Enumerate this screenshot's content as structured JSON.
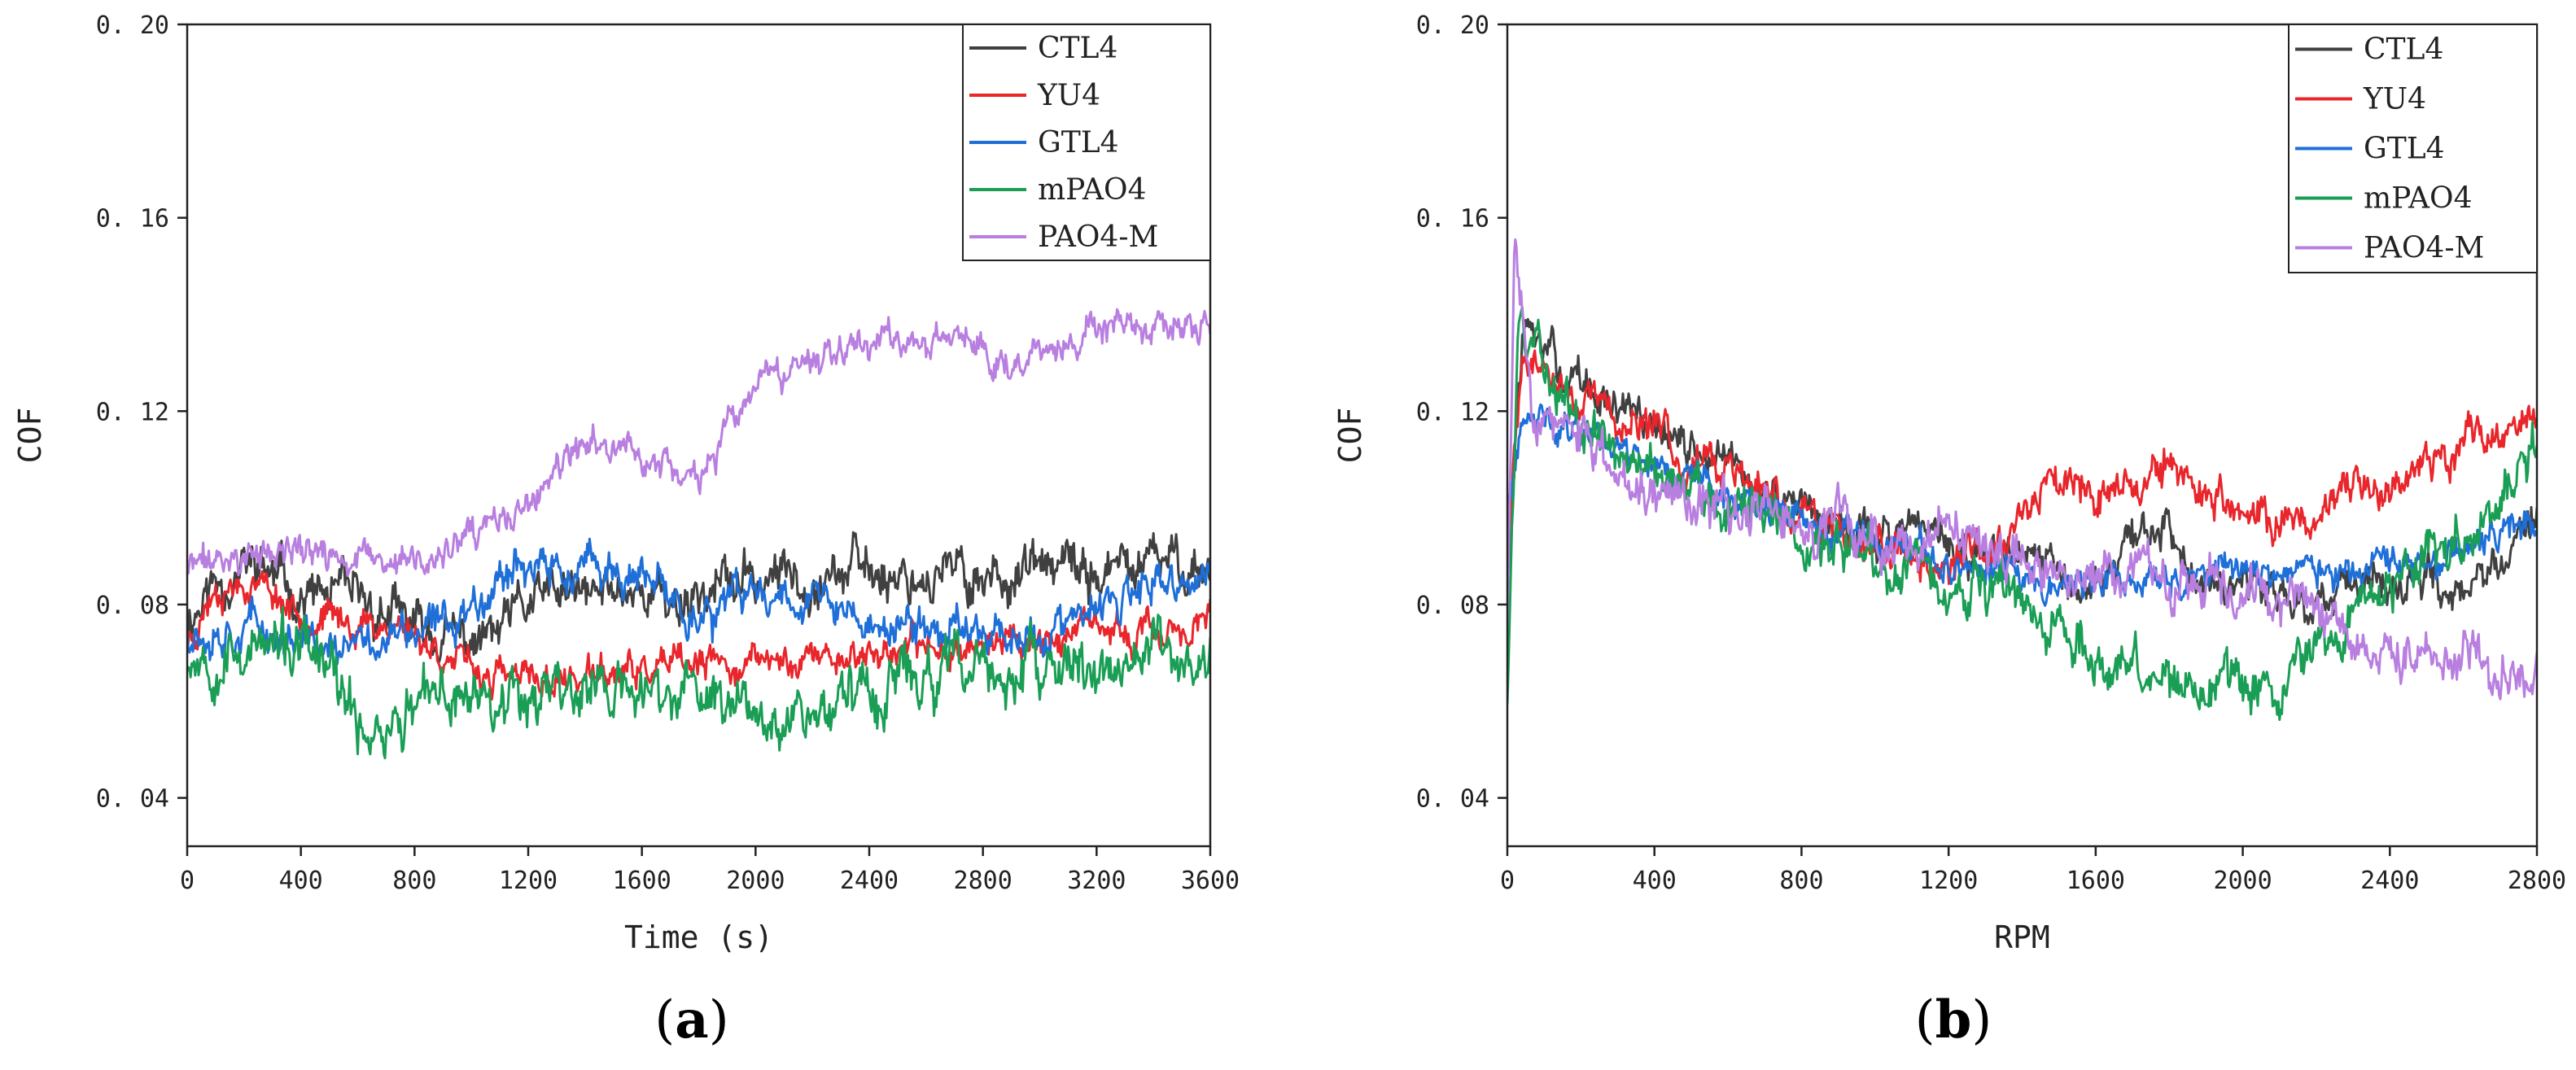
{
  "chart_data": [
    {
      "id": "a",
      "panel_label": "a",
      "type": "line",
      "xlabel": "Time (s)",
      "ylabel": "COF",
      "xlim": [
        0,
        3600
      ],
      "ylim": [
        0.03,
        0.2
      ],
      "xticks": [
        0,
        400,
        800,
        1200,
        1600,
        2000,
        2400,
        2800,
        3200,
        3600
      ],
      "yticks": [
        0.04,
        0.08,
        0.12,
        0.16,
        0.2
      ],
      "legend_position": "top-right",
      "series": [
        {
          "name": "CTL4",
          "color": "#404040",
          "noise": 0.006,
          "seed": 11,
          "points": [
            [
              0,
              0.077
            ],
            [
              100,
              0.085
            ],
            [
              250,
              0.088
            ],
            [
              400,
              0.082
            ],
            [
              550,
              0.081
            ],
            [
              700,
              0.078
            ],
            [
              800,
              0.075
            ],
            [
              900,
              0.073
            ],
            [
              1000,
              0.072
            ],
            [
              1100,
              0.074
            ],
            [
              1200,
              0.08
            ],
            [
              1300,
              0.082
            ],
            [
              1400,
              0.081
            ],
            [
              1500,
              0.083
            ],
            [
              1600,
              0.084
            ],
            [
              1700,
              0.08
            ],
            [
              1800,
              0.083
            ],
            [
              2000,
              0.085
            ],
            [
              2200,
              0.087
            ],
            [
              2400,
              0.087
            ],
            [
              2600,
              0.086
            ],
            [
              2800,
              0.086
            ],
            [
              3000,
              0.087
            ],
            [
              3200,
              0.086
            ],
            [
              3400,
              0.088
            ],
            [
              3500,
              0.089
            ],
            [
              3600,
              0.087
            ]
          ]
        },
        {
          "name": "YU4",
          "color": "#e8262b",
          "noise": 0.004,
          "seed": 23,
          "points": [
            [
              0,
              0.072
            ],
            [
              100,
              0.084
            ],
            [
              250,
              0.085
            ],
            [
              400,
              0.078
            ],
            [
              600,
              0.076
            ],
            [
              750,
              0.076
            ],
            [
              850,
              0.072
            ],
            [
              1000,
              0.066
            ],
            [
              1200,
              0.064
            ],
            [
              1400,
              0.065
            ],
            [
              1600,
              0.066
            ],
            [
              1800,
              0.067
            ],
            [
              2000,
              0.068
            ],
            [
              2200,
              0.069
            ],
            [
              2400,
              0.07
            ],
            [
              2600,
              0.071
            ],
            [
              2800,
              0.072
            ],
            [
              3000,
              0.073
            ],
            [
              3200,
              0.074
            ],
            [
              3400,
              0.074
            ],
            [
              3500,
              0.075
            ],
            [
              3600,
              0.076
            ]
          ]
        },
        {
          "name": "GTL4",
          "color": "#1f6fd8",
          "noise": 0.005,
          "seed": 37,
          "points": [
            [
              0,
              0.075
            ],
            [
              200,
              0.076
            ],
            [
              400,
              0.072
            ],
            [
              550,
              0.07
            ],
            [
              700,
              0.073
            ],
            [
              850,
              0.074
            ],
            [
              1000,
              0.08
            ],
            [
              1150,
              0.09
            ],
            [
              1300,
              0.086
            ],
            [
              1500,
              0.087
            ],
            [
              1700,
              0.081
            ],
            [
              1850,
              0.077
            ],
            [
              2000,
              0.083
            ],
            [
              2200,
              0.082
            ],
            [
              2400,
              0.075
            ],
            [
              2600,
              0.075
            ],
            [
              2800,
              0.076
            ],
            [
              3000,
              0.073
            ],
            [
              3200,
              0.078
            ],
            [
              3400,
              0.083
            ],
            [
              3600,
              0.085
            ]
          ]
        },
        {
          "name": "mPAO4",
          "color": "#1a9e55",
          "noise": 0.007,
          "seed": 53,
          "points": [
            [
              0,
              0.07
            ],
            [
              200,
              0.071
            ],
            [
              400,
              0.07
            ],
            [
              500,
              0.066
            ],
            [
              580,
              0.055
            ],
            [
              700,
              0.055
            ],
            [
              800,
              0.058
            ],
            [
              1000,
              0.062
            ],
            [
              1200,
              0.063
            ],
            [
              1400,
              0.063
            ],
            [
              1600,
              0.061
            ],
            [
              1800,
              0.061
            ],
            [
              2000,
              0.06
            ],
            [
              2200,
              0.058
            ],
            [
              2400,
              0.063
            ],
            [
              2600,
              0.065
            ],
            [
              2800,
              0.066
            ],
            [
              3000,
              0.065
            ],
            [
              3200,
              0.067
            ],
            [
              3400,
              0.069
            ],
            [
              3600,
              0.068
            ]
          ]
        },
        {
          "name": "PAO4-M",
          "color": "#b87fe0",
          "noise": 0.004,
          "seed": 71,
          "points": [
            [
              0,
              0.088
            ],
            [
              200,
              0.09
            ],
            [
              400,
              0.091
            ],
            [
              600,
              0.089
            ],
            [
              800,
              0.088
            ],
            [
              1000,
              0.093
            ],
            [
              1200,
              0.1
            ],
            [
              1350,
              0.11
            ],
            [
              1500,
              0.114
            ],
            [
              1650,
              0.109
            ],
            [
              1800,
              0.106
            ],
            [
              1900,
              0.115
            ],
            [
              2000,
              0.124
            ],
            [
              2150,
              0.128
            ],
            [
              2300,
              0.135
            ],
            [
              2500,
              0.135
            ],
            [
              2700,
              0.135
            ],
            [
              2900,
              0.131
            ],
            [
              3100,
              0.134
            ],
            [
              3300,
              0.137
            ],
            [
              3500,
              0.136
            ],
            [
              3600,
              0.137
            ]
          ]
        }
      ]
    },
    {
      "id": "b",
      "panel_label": "b",
      "type": "line",
      "xlabel": "RPM",
      "ylabel": "COF",
      "xlim": [
        0,
        2800
      ],
      "ylim": [
        0.03,
        0.2
      ],
      "xticks": [
        0,
        400,
        800,
        1200,
        1600,
        2000,
        2400,
        2800
      ],
      "yticks": [
        0.04,
        0.08,
        0.12,
        0.16,
        0.2
      ],
      "legend_position": "top-right",
      "series": [
        {
          "name": "CTL4",
          "color": "#404040",
          "noise": 0.005,
          "seed": 13,
          "points": [
            [
              0,
              0.085
            ],
            [
              40,
              0.135
            ],
            [
              100,
              0.132
            ],
            [
              200,
              0.125
            ],
            [
              400,
              0.116
            ],
            [
              600,
              0.108
            ],
            [
              800,
              0.1
            ],
            [
              1000,
              0.095
            ],
            [
              1200,
              0.092
            ],
            [
              1400,
              0.088
            ],
            [
              1600,
              0.085
            ],
            [
              1700,
              0.093
            ],
            [
              1800,
              0.095
            ],
            [
              1900,
              0.088
            ],
            [
              2000,
              0.085
            ],
            [
              2200,
              0.08
            ],
            [
              2400,
              0.082
            ],
            [
              2600,
              0.085
            ],
            [
              2700,
              0.09
            ],
            [
              2800,
              0.098
            ]
          ]
        },
        {
          "name": "YU4",
          "color": "#e8262b",
          "noise": 0.005,
          "seed": 29,
          "points": [
            [
              0,
              0.09
            ],
            [
              40,
              0.13
            ],
            [
              100,
              0.128
            ],
            [
              200,
              0.122
            ],
            [
              400,
              0.115
            ],
            [
              600,
              0.107
            ],
            [
              800,
              0.098
            ],
            [
              1000,
              0.093
            ],
            [
              1200,
              0.088
            ],
            [
              1300,
              0.09
            ],
            [
              1400,
              0.1
            ],
            [
              1500,
              0.108
            ],
            [
              1600,
              0.106
            ],
            [
              1700,
              0.105
            ],
            [
              1800,
              0.108
            ],
            [
              1900,
              0.104
            ],
            [
              2000,
              0.097
            ],
            [
              2200,
              0.098
            ],
            [
              2400,
              0.106
            ],
            [
              2600,
              0.114
            ],
            [
              2700,
              0.116
            ],
            [
              2800,
              0.118
            ]
          ]
        },
        {
          "name": "GTL4",
          "color": "#1f6fd8",
          "noise": 0.004,
          "seed": 41,
          "points": [
            [
              0,
              0.1
            ],
            [
              40,
              0.115
            ],
            [
              100,
              0.118
            ],
            [
              200,
              0.117
            ],
            [
              400,
              0.11
            ],
            [
              600,
              0.103
            ],
            [
              800,
              0.097
            ],
            [
              1000,
              0.092
            ],
            [
              1200,
              0.088
            ],
            [
              1400,
              0.086
            ],
            [
              1600,
              0.084
            ],
            [
              1800,
              0.085
            ],
            [
              2000,
              0.088
            ],
            [
              2200,
              0.087
            ],
            [
              2400,
              0.086
            ],
            [
              2600,
              0.09
            ],
            [
              2800,
              0.098
            ]
          ]
        },
        {
          "name": "mPAO4",
          "color": "#1a9e55",
          "noise": 0.006,
          "seed": 59,
          "points": [
            [
              0,
              0.06
            ],
            [
              30,
              0.14
            ],
            [
              80,
              0.133
            ],
            [
              150,
              0.123
            ],
            [
              300,
              0.113
            ],
            [
              500,
              0.104
            ],
            [
              700,
              0.099
            ],
            [
              900,
              0.093
            ],
            [
              1100,
              0.087
            ],
            [
              1300,
              0.083
            ],
            [
              1500,
              0.075
            ],
            [
              1700,
              0.066
            ],
            [
              1800,
              0.063
            ],
            [
              2000,
              0.064
            ],
            [
              2100,
              0.062
            ],
            [
              2200,
              0.075
            ],
            [
              2400,
              0.085
            ],
            [
              2600,
              0.095
            ],
            [
              2700,
              0.1
            ],
            [
              2800,
              0.115
            ]
          ]
        },
        {
          "name": "PAO4-M",
          "color": "#b87fe0",
          "noise": 0.006,
          "seed": 83,
          "points": [
            [
              0,
              0.075
            ],
            [
              20,
              0.155
            ],
            [
              60,
              0.125
            ],
            [
              150,
              0.115
            ],
            [
              300,
              0.108
            ],
            [
              500,
              0.102
            ],
            [
              700,
              0.098
            ],
            [
              900,
              0.095
            ],
            [
              1100,
              0.093
            ],
            [
              1300,
              0.09
            ],
            [
              1500,
              0.087
            ],
            [
              1700,
              0.085
            ],
            [
              1900,
              0.087
            ],
            [
              2100,
              0.082
            ],
            [
              2300,
              0.075
            ],
            [
              2500,
              0.07
            ],
            [
              2650,
              0.068
            ],
            [
              2750,
              0.065
            ],
            [
              2800,
              0.065
            ]
          ]
        }
      ]
    }
  ]
}
